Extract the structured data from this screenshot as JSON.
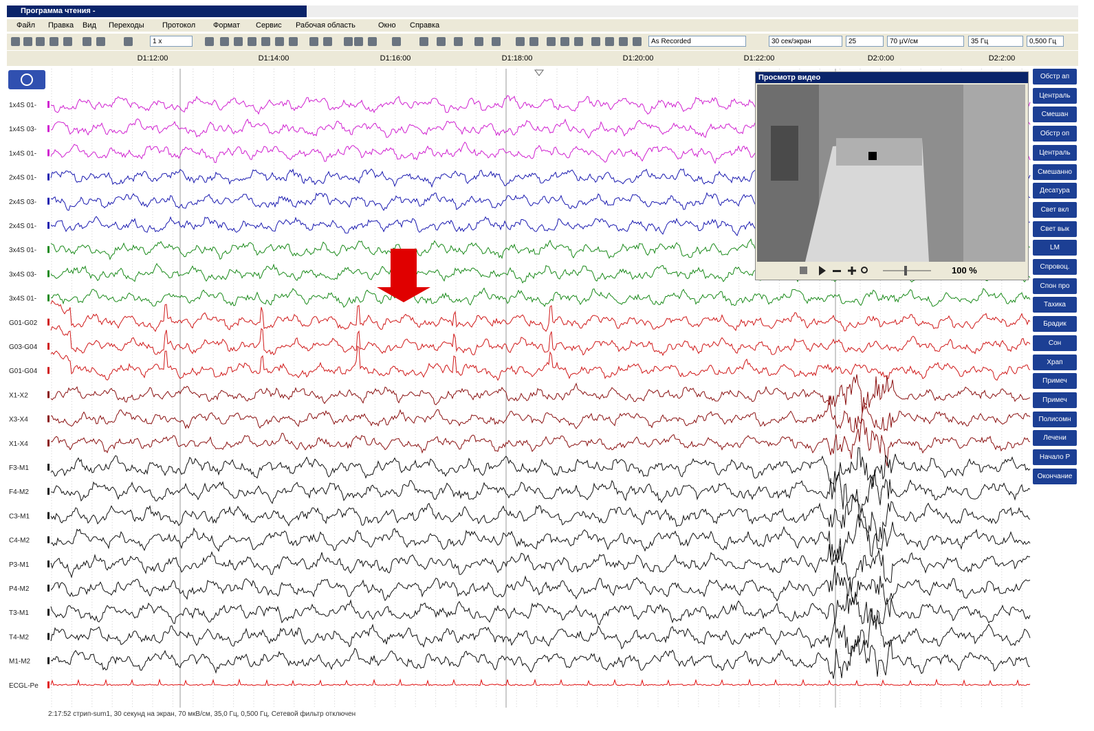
{
  "window": {
    "title": "Программа чтения -"
  },
  "menu": [
    "Файл",
    "Правка",
    "Вид",
    "Переходы",
    "Протокол",
    "Формат",
    "Сервис",
    "Рабочая область",
    "Окно",
    "Справка"
  ],
  "toolbar": {
    "speed": "1 x",
    "montage": "As Recorded",
    "timebase": "30 сек/экран",
    "field": "25",
    "sensitivity": "70 µV/см",
    "highcut": "35 Гц",
    "lowcut": "0,500 Гц"
  },
  "timeline": [
    "D1:12:00",
    "D1:14:00",
    "D1:16:00",
    "D1:18:00",
    "D1:20:00",
    "D1:22:00",
    "D2:0:00",
    "D2:2:00"
  ],
  "channels": [
    {
      "label": "1x4S 01-",
      "color": "#d020d0"
    },
    {
      "label": "1x4S 03-",
      "color": "#d020d0"
    },
    {
      "label": "1x4S 01-",
      "color": "#d020d0"
    },
    {
      "label": "2x4S 01-",
      "color": "#1a1ab0"
    },
    {
      "label": "2x4S 03-",
      "color": "#1a1ab0"
    },
    {
      "label": "2x4S 01-",
      "color": "#1a1ab0"
    },
    {
      "label": "3x4S 01-",
      "color": "#1a8a1a"
    },
    {
      "label": "3x4S 03-",
      "color": "#1a8a1a"
    },
    {
      "label": "3x4S 01-",
      "color": "#1a8a1a"
    },
    {
      "label": "G01-G02",
      "color": "#d01818"
    },
    {
      "label": "G03-G04",
      "color": "#d01818"
    },
    {
      "label": "G01-G04",
      "color": "#d01818"
    },
    {
      "label": "X1-X2",
      "color": "#8a1010"
    },
    {
      "label": "X3-X4",
      "color": "#8a1010"
    },
    {
      "label": "X1-X4",
      "color": "#8a1010"
    },
    {
      "label": "F3-M1",
      "color": "#111111"
    },
    {
      "label": "F4-M2",
      "color": "#111111"
    },
    {
      "label": "C3-M1",
      "color": "#111111"
    },
    {
      "label": "C4-M2",
      "color": "#111111"
    },
    {
      "label": "P3-M1",
      "color": "#111111"
    },
    {
      "label": "P4-M2",
      "color": "#111111"
    },
    {
      "label": "T3-M1",
      "color": "#111111"
    },
    {
      "label": "T4-M2",
      "color": "#111111"
    },
    {
      "label": "M1-M2",
      "color": "#111111"
    },
    {
      "label": "ECGL-Pe",
      "color": "#e01010"
    }
  ],
  "video": {
    "title": "Просмотр видео",
    "zoom": "100 %"
  },
  "events": [
    "Обстр ап",
    "Централь",
    "Смешан",
    "Обстр оп",
    "Централь",
    "Смешанно",
    "Десатура",
    "Свет вкл",
    "Свет вык",
    "LM",
    "Спровоц.",
    "Спон про",
    "Тахика",
    "Брадик",
    "Сон",
    "Храп",
    "Примеч",
    "Примеч",
    "Полисомн",
    "Лечени",
    "Начало Р",
    "Окончание"
  ],
  "status": "2:17:52 стрип-sum1, 30 секунд на экран, 70 мкВ/см, 35,0 Гц, 0,500 Гц, Сетевой фильтр отключен"
}
